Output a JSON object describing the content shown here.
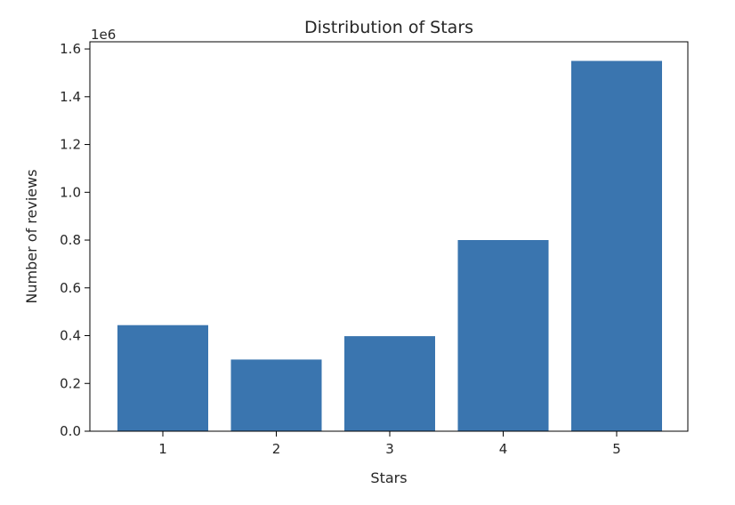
{
  "chart_data": {
    "type": "bar",
    "title": "Distribution of Stars",
    "xlabel": "Stars",
    "ylabel": "Number of reviews",
    "y_offset_label": "1e6",
    "categories": [
      "1",
      "2",
      "3",
      "4",
      "5"
    ],
    "values": [
      444000,
      300000,
      398000,
      800000,
      1550000
    ],
    "ylim": [
      0,
      1630000
    ],
    "yticks": [
      0,
      200000,
      400000,
      600000,
      800000,
      1000000,
      1200000,
      1400000,
      1600000
    ],
    "ytick_labels": [
      "0.0",
      "0.2",
      "0.4",
      "0.6",
      "0.8",
      "1.0",
      "1.2",
      "1.4",
      "1.6"
    ],
    "grid": false,
    "bar_color": "#3a75af"
  }
}
